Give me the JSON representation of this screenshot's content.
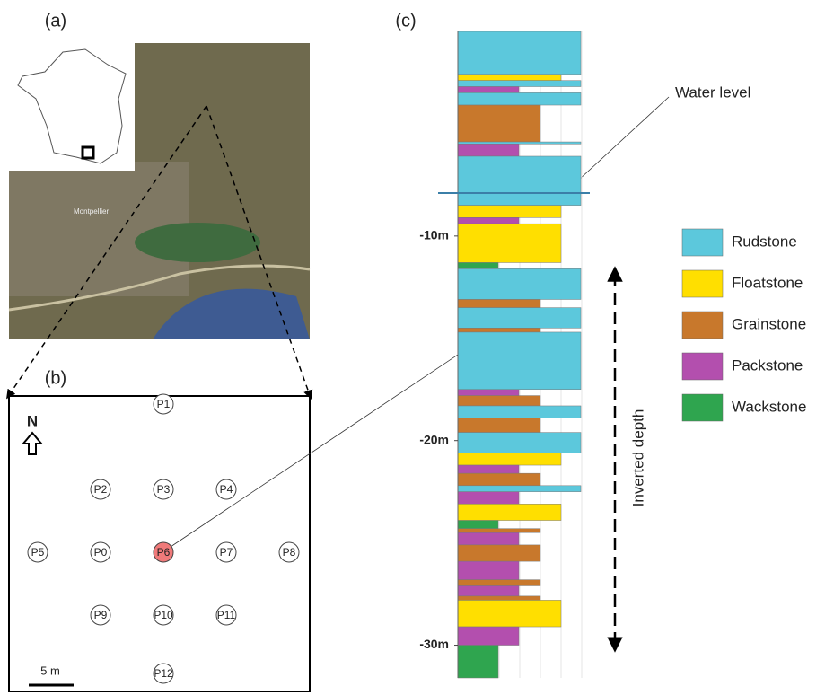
{
  "panels": {
    "a": "(a)",
    "b": "(b)",
    "c": "(c)"
  },
  "map": {
    "city": "Montpellier"
  },
  "layout": {
    "north": "N",
    "scale_bar": "5 m",
    "wells": [
      {
        "label": "P1"
      },
      {
        "label": "P2"
      },
      {
        "label": "P3"
      },
      {
        "label": "P4"
      },
      {
        "label": "P5"
      },
      {
        "label": "P0"
      },
      {
        "label": "P6",
        "highlight": true
      },
      {
        "label": "P7"
      },
      {
        "label": "P8"
      },
      {
        "label": "P9"
      },
      {
        "label": "P10"
      },
      {
        "label": "P11"
      },
      {
        "label": "P12"
      }
    ]
  },
  "column": {
    "ylim": [
      0,
      -31.6
    ],
    "yticks": [
      {
        "value": -10,
        "label": "-10m"
      },
      {
        "value": -20,
        "label": "-20m"
      },
      {
        "value": -30,
        "label": "-30m"
      }
    ],
    "water_level": {
      "label": "Water level",
      "depth": -7.9
    },
    "axis_label": "Inverted depth",
    "lithologies": [
      {
        "name": "Rudstone",
        "color": "#5cc8dc"
      },
      {
        "name": "Floatstone",
        "color": "#ffdf00"
      },
      {
        "name": "Grainstone",
        "color": "#c8782c"
      },
      {
        "name": "Packstone",
        "color": "#b34fae"
      },
      {
        "name": "Wackstone",
        "color": "#2fa54f"
      }
    ],
    "layers": [
      {
        "lith": 0,
        "top": 0,
        "bottom": -2.1
      },
      {
        "lith": 1,
        "top": -2.1,
        "bottom": -2.4
      },
      {
        "lith": 0,
        "top": -2.4,
        "bottom": -2.7
      },
      {
        "lith": 3,
        "top": -2.7,
        "bottom": -3.0
      },
      {
        "lith": 0,
        "top": -3.0,
        "bottom": -3.6
      },
      {
        "lith": 2,
        "top": -3.6,
        "bottom": -5.4
      },
      {
        "lith": 0,
        "top": -5.4,
        "bottom": -5.5
      },
      {
        "lith": 3,
        "top": -5.5,
        "bottom": -6.1
      },
      {
        "lith": 0,
        "top": -6.1,
        "bottom": -8.5
      },
      {
        "lith": 1,
        "top": -8.5,
        "bottom": -9.1
      },
      {
        "lith": 3,
        "top": -9.1,
        "bottom": -9.4
      },
      {
        "lith": 1,
        "top": -9.4,
        "bottom": -11.3
      },
      {
        "lith": 4,
        "top": -11.3,
        "bottom": -11.6
      },
      {
        "lith": 0,
        "top": -11.6,
        "bottom": -13.1
      },
      {
        "lith": 2,
        "top": -13.1,
        "bottom": -13.5
      },
      {
        "lith": 0,
        "top": -13.5,
        "bottom": -14.5
      },
      {
        "lith": 2,
        "top": -14.5,
        "bottom": -14.7
      },
      {
        "lith": 0,
        "top": -14.7,
        "bottom": -17.5
      },
      {
        "lith": 3,
        "top": -17.5,
        "bottom": -17.8
      },
      {
        "lith": 2,
        "top": -17.8,
        "bottom": -18.3
      },
      {
        "lith": 0,
        "top": -18.3,
        "bottom": -18.9
      },
      {
        "lith": 2,
        "top": -18.9,
        "bottom": -19.6
      },
      {
        "lith": 0,
        "top": -19.6,
        "bottom": -20.6
      },
      {
        "lith": 1,
        "top": -20.6,
        "bottom": -21.2
      },
      {
        "lith": 3,
        "top": -21.2,
        "bottom": -21.6
      },
      {
        "lith": 2,
        "top": -21.6,
        "bottom": -22.2
      },
      {
        "lith": 0,
        "top": -22.2,
        "bottom": -22.5
      },
      {
        "lith": 3,
        "top": -22.5,
        "bottom": -23.1
      },
      {
        "lith": 1,
        "top": -23.1,
        "bottom": -23.9
      },
      {
        "lith": 4,
        "top": -23.9,
        "bottom": -24.3
      },
      {
        "lith": 2,
        "top": -24.3,
        "bottom": -24.5
      },
      {
        "lith": 3,
        "top": -24.5,
        "bottom": -25.1
      },
      {
        "lith": 2,
        "top": -25.1,
        "bottom": -25.9
      },
      {
        "lith": 3,
        "top": -25.9,
        "bottom": -26.8
      },
      {
        "lith": 2,
        "top": -26.8,
        "bottom": -27.1
      },
      {
        "lith": 3,
        "top": -27.1,
        "bottom": -27.6
      },
      {
        "lith": 2,
        "top": -27.6,
        "bottom": -27.8
      },
      {
        "lith": 1,
        "top": -27.8,
        "bottom": -29.1
      },
      {
        "lith": 3,
        "top": -29.1,
        "bottom": -30.0
      },
      {
        "lith": 4,
        "top": -30.0,
        "bottom": -31.6
      }
    ]
  }
}
